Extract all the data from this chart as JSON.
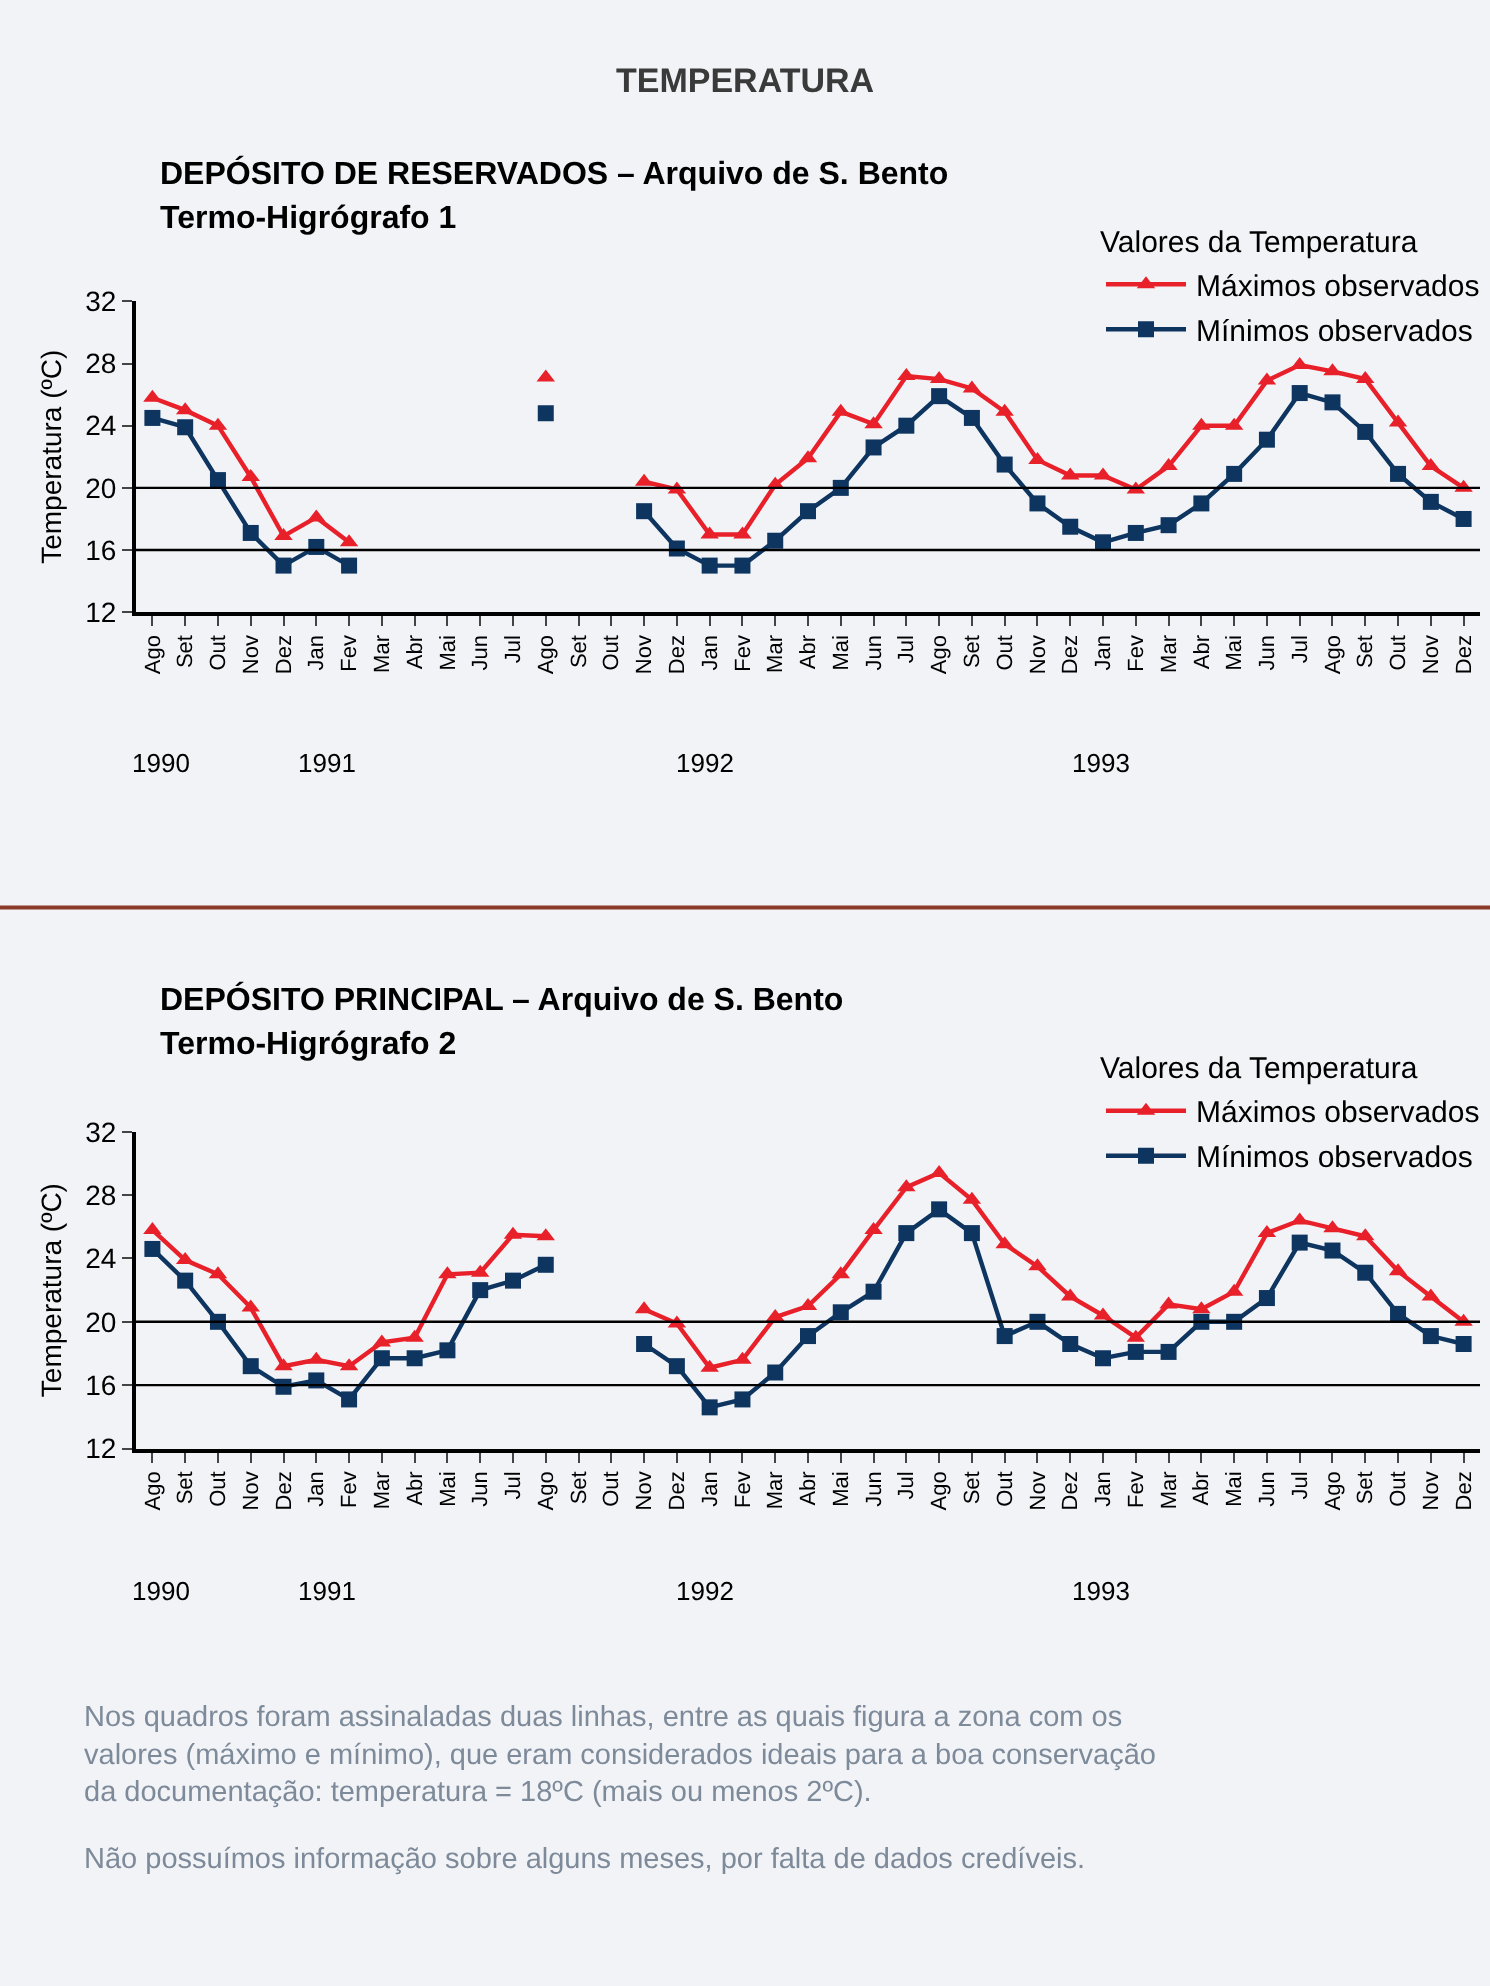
{
  "chart_data": [
    {
      "type": "line",
      "title": "DEPÓSITO DE RESERVADOS – Arquivo de S. Bento",
      "subtitle": "Termo-Higrógrafo 1",
      "ylabel": "Temperatura (ºC)",
      "legend_title": "Valores da Temperatura",
      "legend": "top right",
      "grid": false,
      "categories": [
        "Ago",
        "Set",
        "Out",
        "Nov",
        "Dez",
        "Jan",
        "Fev",
        "Mar",
        "Abr",
        "Mai",
        "Jun",
        "Jul",
        "Ago",
        "Set",
        "Out",
        "Nov",
        "Dez",
        "Jan",
        "Fev",
        "Mar",
        "Abr",
        "Mai",
        "Jun",
        "Jul",
        "Ago",
        "Set",
        "Out",
        "Nov",
        "Dez",
        "Jan",
        "Fev",
        "Mar",
        "Abr",
        "Mai",
        "Jun",
        "Jul",
        "Ago",
        "Set",
        "Out",
        "Nov",
        "Dez"
      ],
      "ylim": [
        12,
        32
      ],
      "yticks": [
        12,
        16,
        20,
        24,
        28,
        32
      ],
      "ref_lines": [
        {
          "axis": "y",
          "value": 20,
          "color": "#000000"
        },
        {
          "axis": "y",
          "value": 16,
          "color": "#000000"
        }
      ],
      "annotations": [
        "TEMPERATURA",
        "1990",
        "1991",
        "1992",
        "1993"
      ],
      "series": [
        {
          "name": "Máximos observados",
          "color": "#e8202a",
          "marker": "triangle",
          "values": [
            25.8,
            25.0,
            24.0,
            20.7,
            16.9,
            18.1,
            16.5,
            null,
            null,
            null,
            null,
            null,
            27.1,
            null,
            null,
            20.4,
            19.9,
            17.0,
            17.0,
            20.2,
            21.9,
            24.9,
            24.1,
            27.2,
            27.0,
            26.4,
            24.9,
            21.8,
            20.8,
            20.8,
            19.9,
            21.4,
            24.0,
            24.0,
            26.9,
            27.9,
            27.5,
            27.0,
            24.2,
            21.4,
            20.0
          ]
        },
        {
          "name": "Mínimos observados",
          "color": "#0d3560",
          "marker": "square",
          "values": [
            24.5,
            23.9,
            20.5,
            17.1,
            15.0,
            16.2,
            15.0,
            null,
            null,
            null,
            null,
            null,
            24.8,
            null,
            null,
            18.5,
            16.1,
            15.0,
            15.0,
            16.6,
            18.5,
            20.0,
            22.6,
            24.0,
            25.9,
            24.5,
            21.5,
            19.0,
            17.5,
            16.5,
            17.1,
            17.6,
            19.0,
            20.9,
            23.1,
            26.1,
            25.5,
            23.6,
            20.9,
            19.1,
            18.0
          ]
        }
      ]
    },
    {
      "type": "line",
      "title": "DEPÓSITO PRINCIPAL – Arquivo de S. Bento",
      "subtitle": "Termo-Higrógrafo 2",
      "ylabel": "Temperatura (ºC)",
      "legend_title": "Valores da Temperatura",
      "legend": "top right",
      "grid": false,
      "categories": [
        "Ago",
        "Set",
        "Out",
        "Nov",
        "Dez",
        "Jan",
        "Fev",
        "Mar",
        "Abr",
        "Mai",
        "Jun",
        "Jul",
        "Ago",
        "Set",
        "Out",
        "Nov",
        "Dez",
        "Jan",
        "Fev",
        "Mar",
        "Abr",
        "Mai",
        "Jun",
        "Jul",
        "Ago",
        "Set",
        "Out",
        "Nov",
        "Dez",
        "Jan",
        "Fev",
        "Mar",
        "Abr",
        "Mai",
        "Jun",
        "Jul",
        "Ago",
        "Set",
        "Out",
        "Nov",
        "Dez"
      ],
      "ylim": [
        12,
        32
      ],
      "yticks": [
        12,
        16,
        20,
        24,
        28,
        32
      ],
      "ref_lines": [
        {
          "axis": "y",
          "value": 20,
          "color": "#000000"
        },
        {
          "axis": "y",
          "value": 16,
          "color": "#000000"
        }
      ],
      "annotations": [
        "1990",
        "1991",
        "1992",
        "1993",
        "Nos quadros foram assinaladas duas linhas, entre as quais figura a zona com os valores (máximo e mínimo), que eram considerados ideais para a boa conservação da documentação: temperatura = 18ºC (mais ou menos 2ºC).",
        "Não possuímos informação sobre alguns meses, por falta de dados credíveis."
      ],
      "series": [
        {
          "name": "Máximos observados",
          "color": "#e8202a",
          "marker": "triangle",
          "values": [
            25.8,
            23.9,
            23.0,
            20.9,
            17.2,
            17.6,
            17.2,
            18.7,
            19.0,
            23.0,
            23.1,
            25.5,
            25.4,
            null,
            null,
            20.8,
            19.9,
            17.1,
            17.6,
            20.3,
            21.0,
            23.0,
            25.8,
            28.5,
            29.4,
            27.7,
            24.9,
            23.5,
            21.6,
            20.4,
            19.0,
            21.1,
            20.8,
            21.9,
            25.6,
            26.4,
            25.9,
            25.4,
            23.2,
            21.6,
            20.0
          ]
        },
        {
          "name": "Mínimos observados",
          "color": "#0d3560",
          "marker": "square",
          "values": [
            24.6,
            22.6,
            20.0,
            17.2,
            15.9,
            16.3,
            15.1,
            17.7,
            17.7,
            18.2,
            22.0,
            22.6,
            23.6,
            null,
            null,
            18.6,
            17.2,
            14.6,
            15.1,
            16.8,
            19.1,
            20.6,
            21.9,
            25.6,
            27.1,
            25.6,
            19.1,
            20.0,
            18.6,
            17.7,
            18.1,
            18.1,
            20.0,
            20.0,
            21.5,
            25.0,
            24.5,
            23.1,
            20.5,
            19.1,
            18.6
          ]
        }
      ]
    }
  ]
}
